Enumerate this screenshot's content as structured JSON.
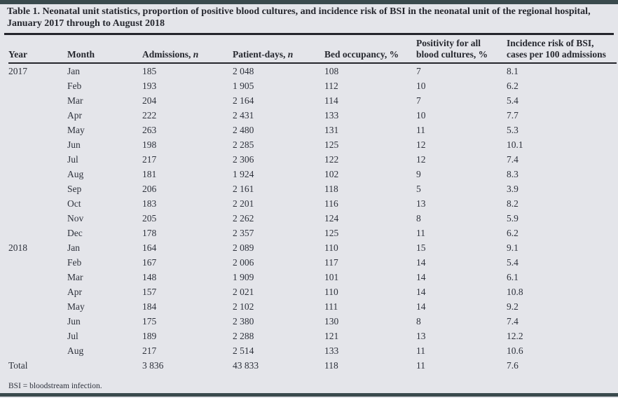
{
  "table": {
    "title": "Table 1. Neonatal unit statistics, proportion of positive blood cultures, and incidence risk of BSI in the neonatal unit of the regional hospital, January 2017 through to August 2018",
    "footnote": "BSI = bloodstream infection.",
    "columns": [
      {
        "label": "Year"
      },
      {
        "label": "Month"
      },
      {
        "label": "Admissions, ",
        "italic": "n"
      },
      {
        "label": "Patient-days, ",
        "italic": "n"
      },
      {
        "label": "Bed occupancy, %"
      },
      {
        "label": "Positivity for all blood cultures, %"
      },
      {
        "label": "Incidence risk of BSI, cases per 100 admissions"
      }
    ],
    "rows": [
      {
        "year": "2017",
        "month": "Jan",
        "admissions": "185",
        "patient_days": "2 048",
        "bed_occupancy": "108",
        "positivity": "7",
        "incidence": "8.1"
      },
      {
        "year": "",
        "month": "Feb",
        "admissions": "193",
        "patient_days": "1 905",
        "bed_occupancy": "112",
        "positivity": "10",
        "incidence": "6.2"
      },
      {
        "year": "",
        "month": "Mar",
        "admissions": "204",
        "patient_days": "2 164",
        "bed_occupancy": "114",
        "positivity": "7",
        "incidence": "5.4"
      },
      {
        "year": "",
        "month": "Apr",
        "admissions": "222",
        "patient_days": "2 431",
        "bed_occupancy": "133",
        "positivity": "10",
        "incidence": "7.7"
      },
      {
        "year": "",
        "month": "May",
        "admissions": "263",
        "patient_days": "2 480",
        "bed_occupancy": "131",
        "positivity": "11",
        "incidence": "5.3"
      },
      {
        "year": "",
        "month": "Jun",
        "admissions": "198",
        "patient_days": "2 285",
        "bed_occupancy": "125",
        "positivity": "12",
        "incidence": "10.1"
      },
      {
        "year": "",
        "month": "Jul",
        "admissions": "217",
        "patient_days": "2 306",
        "bed_occupancy": "122",
        "positivity": "12",
        "incidence": "7.4"
      },
      {
        "year": "",
        "month": "Aug",
        "admissions": "181",
        "patient_days": "1 924",
        "bed_occupancy": "102",
        "positivity": "9",
        "incidence": "8.3"
      },
      {
        "year": "",
        "month": "Sep",
        "admissions": "206",
        "patient_days": "2 161",
        "bed_occupancy": "118",
        "positivity": "5",
        "incidence": "3.9"
      },
      {
        "year": "",
        "month": "Oct",
        "admissions": "183",
        "patient_days": "2 201",
        "bed_occupancy": "116",
        "positivity": "13",
        "incidence": "8.2"
      },
      {
        "year": "",
        "month": "Nov",
        "admissions": "205",
        "patient_days": "2 262",
        "bed_occupancy": "124",
        "positivity": "8",
        "incidence": "5.9"
      },
      {
        "year": "",
        "month": "Dec",
        "admissions": "178",
        "patient_days": "2 357",
        "bed_occupancy": "125",
        "positivity": "11",
        "incidence": "6.2"
      },
      {
        "year": "2018",
        "month": "Jan",
        "admissions": "164",
        "patient_days": "2 089",
        "bed_occupancy": "110",
        "positivity": "15",
        "incidence": "9.1"
      },
      {
        "year": "",
        "month": "Feb",
        "admissions": "167",
        "patient_days": "2 006",
        "bed_occupancy": "117",
        "positivity": "14",
        "incidence": "5.4"
      },
      {
        "year": "",
        "month": "Mar",
        "admissions": "148",
        "patient_days": "1 909",
        "bed_occupancy": "101",
        "positivity": "14",
        "incidence": "6.1"
      },
      {
        "year": "",
        "month": "Apr",
        "admissions": "157",
        "patient_days": "2 021",
        "bed_occupancy": "110",
        "positivity": "14",
        "incidence": "10.8"
      },
      {
        "year": "",
        "month": "May",
        "admissions": "184",
        "patient_days": "2 102",
        "bed_occupancy": "111",
        "positivity": "14",
        "incidence": "9.2"
      },
      {
        "year": "",
        "month": "Jun",
        "admissions": "175",
        "patient_days": "2 380",
        "bed_occupancy": "130",
        "positivity": "8",
        "incidence": "7.4"
      },
      {
        "year": "",
        "month": "Jul",
        "admissions": "189",
        "patient_days": "2 288",
        "bed_occupancy": "121",
        "positivity": "13",
        "incidence": "12.2"
      },
      {
        "year": "",
        "month": "Aug",
        "admissions": "217",
        "patient_days": "2 514",
        "bed_occupancy": "133",
        "positivity": "11",
        "incidence": "10.6"
      },
      {
        "year": "Total",
        "month": "",
        "admissions": "3 836",
        "patient_days": "43 833",
        "bed_occupancy": "118",
        "positivity": "11",
        "incidence": "7.6"
      }
    ]
  },
  "colors": {
    "background": "#e4e5ea",
    "rule_bar": "#3a4a4d",
    "text": "#2e323c",
    "heavy_rule": "#24252c"
  }
}
